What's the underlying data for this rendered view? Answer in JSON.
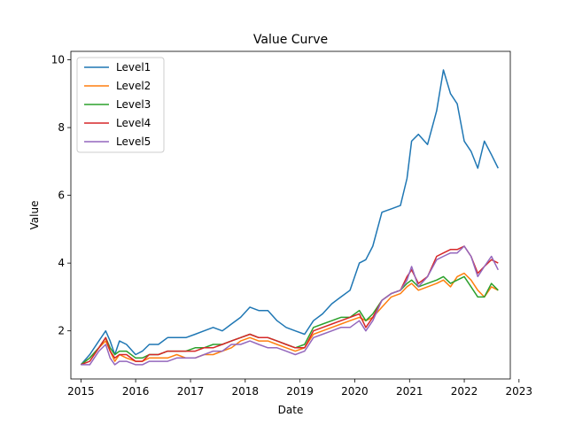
{
  "chart_data": {
    "type": "line",
    "title": "Value Curve",
    "xlabel": "Date",
    "ylabel": "Value",
    "x_ticks": [
      "2015",
      "2016",
      "2017",
      "2018",
      "2019",
      "2020",
      "2021",
      "2022",
      "2023"
    ],
    "y_ticks": [
      "2",
      "4",
      "6",
      "8",
      "10"
    ],
    "xlim": [
      "2014-10-26",
      "2022-11-04"
    ],
    "ylim": [
      0.58,
      10.25
    ],
    "legend_position": "top-left",
    "grid": false,
    "x": [
      "2015-01-01",
      "2015-03-01",
      "2015-05-01",
      "2015-06-15",
      "2015-07-15",
      "2015-08-15",
      "2015-09-15",
      "2015-11-01",
      "2016-01-01",
      "2016-02-15",
      "2016-04-01",
      "2016-06-01",
      "2016-08-01",
      "2016-10-01",
      "2016-12-01",
      "2017-02-01",
      "2017-04-01",
      "2017-06-01",
      "2017-08-01",
      "2017-10-01",
      "2017-12-01",
      "2018-02-01",
      "2018-04-01",
      "2018-06-01",
      "2018-08-01",
      "2018-10-01",
      "2018-12-01",
      "2019-02-01",
      "2019-04-01",
      "2019-06-01",
      "2019-08-01",
      "2019-10-01",
      "2019-12-01",
      "2020-02-01",
      "2020-03-15",
      "2020-05-01",
      "2020-07-01",
      "2020-09-01",
      "2020-11-01",
      "2020-12-15",
      "2021-01-15",
      "2021-03-01",
      "2021-05-01",
      "2021-07-01",
      "2021-08-15",
      "2021-10-01",
      "2021-11-15",
      "2022-01-01",
      "2022-02-15",
      "2022-04-01",
      "2022-05-15",
      "2022-07-01",
      "2022-08-15"
    ],
    "series": [
      {
        "name": "Level1",
        "color": "#1f77b4",
        "values": [
          1.0,
          1.3,
          1.7,
          2.0,
          1.7,
          1.3,
          1.7,
          1.6,
          1.3,
          1.4,
          1.6,
          1.6,
          1.8,
          1.8,
          1.8,
          1.9,
          2.0,
          2.1,
          2.0,
          2.2,
          2.4,
          2.7,
          2.6,
          2.6,
          2.3,
          2.1,
          2.0,
          1.9,
          2.3,
          2.5,
          2.8,
          3.0,
          3.2,
          4.0,
          4.1,
          4.5,
          5.5,
          5.6,
          5.7,
          6.5,
          7.6,
          7.8,
          7.5,
          8.5,
          9.7,
          9.0,
          8.7,
          7.6,
          7.3,
          6.8,
          7.6,
          7.2,
          6.8
        ]
      },
      {
        "name": "Level2",
        "color": "#ff7f0e",
        "values": [
          1.0,
          1.2,
          1.5,
          1.7,
          1.4,
          1.1,
          1.3,
          1.2,
          1.1,
          1.1,
          1.2,
          1.2,
          1.2,
          1.3,
          1.2,
          1.2,
          1.3,
          1.3,
          1.4,
          1.5,
          1.7,
          1.8,
          1.7,
          1.7,
          1.6,
          1.5,
          1.4,
          1.5,
          1.9,
          2.0,
          2.1,
          2.2,
          2.3,
          2.4,
          2.3,
          2.4,
          2.7,
          3.0,
          3.1,
          3.3,
          3.4,
          3.2,
          3.3,
          3.4,
          3.5,
          3.3,
          3.6,
          3.7,
          3.5,
          3.2,
          3.0,
          3.3,
          3.2
        ]
      },
      {
        "name": "Level3",
        "color": "#2ca02c",
        "values": [
          1.0,
          1.2,
          1.5,
          1.8,
          1.5,
          1.3,
          1.4,
          1.4,
          1.2,
          1.2,
          1.3,
          1.3,
          1.4,
          1.4,
          1.4,
          1.5,
          1.5,
          1.6,
          1.6,
          1.7,
          1.8,
          1.9,
          1.8,
          1.8,
          1.7,
          1.6,
          1.5,
          1.6,
          2.1,
          2.2,
          2.3,
          2.4,
          2.4,
          2.6,
          2.3,
          2.5,
          2.9,
          3.1,
          3.2,
          3.4,
          3.5,
          3.3,
          3.4,
          3.5,
          3.6,
          3.4,
          3.5,
          3.6,
          3.3,
          3.0,
          3.0,
          3.4,
          3.2
        ]
      },
      {
        "name": "Level4",
        "color": "#d62728",
        "values": [
          1.0,
          1.1,
          1.5,
          1.8,
          1.4,
          1.2,
          1.3,
          1.3,
          1.1,
          1.1,
          1.3,
          1.3,
          1.4,
          1.4,
          1.4,
          1.4,
          1.5,
          1.5,
          1.6,
          1.7,
          1.8,
          1.9,
          1.8,
          1.8,
          1.7,
          1.6,
          1.5,
          1.5,
          2.0,
          2.1,
          2.2,
          2.3,
          2.4,
          2.5,
          2.1,
          2.4,
          2.9,
          3.1,
          3.2,
          3.6,
          3.8,
          3.4,
          3.6,
          4.2,
          4.3,
          4.4,
          4.4,
          4.5,
          4.2,
          3.7,
          3.9,
          4.1,
          4.0
        ]
      },
      {
        "name": "Level5",
        "color": "#9467bd",
        "values": [
          1.0,
          1.0,
          1.4,
          1.6,
          1.2,
          1.0,
          1.1,
          1.1,
          1.0,
          1.0,
          1.1,
          1.1,
          1.1,
          1.2,
          1.2,
          1.2,
          1.3,
          1.4,
          1.4,
          1.6,
          1.6,
          1.7,
          1.6,
          1.5,
          1.5,
          1.4,
          1.3,
          1.4,
          1.8,
          1.9,
          2.0,
          2.1,
          2.1,
          2.3,
          2.0,
          2.3,
          2.9,
          3.1,
          3.2,
          3.5,
          3.9,
          3.3,
          3.6,
          4.1,
          4.2,
          4.3,
          4.3,
          4.5,
          4.2,
          3.6,
          3.9,
          4.2,
          3.8
        ]
      }
    ]
  }
}
